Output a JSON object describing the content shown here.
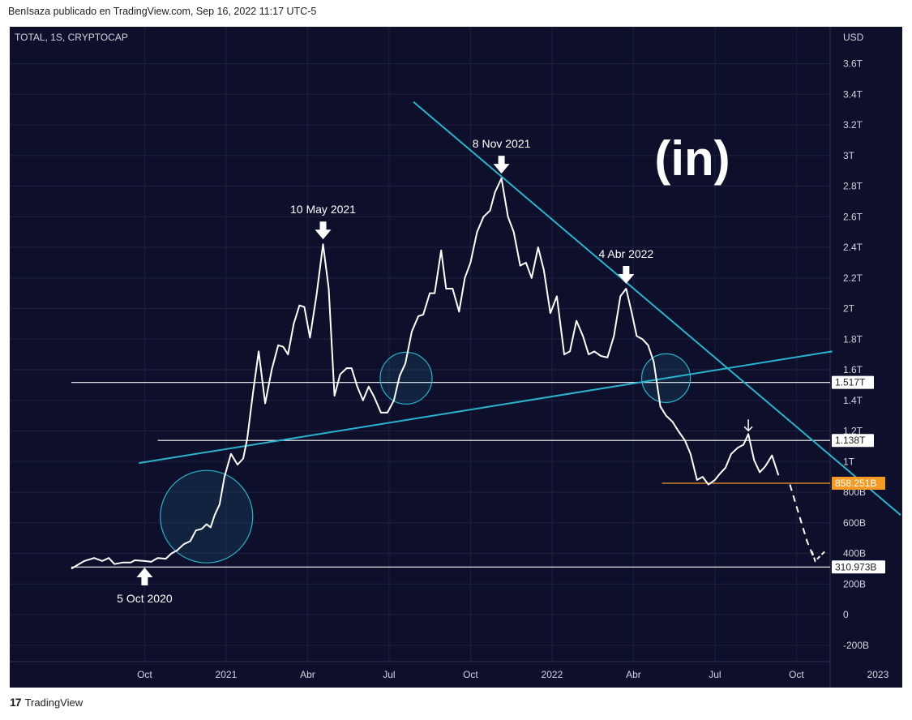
{
  "header": {
    "text": "BenIsaza publicado en TradingView.com, Sep 16, 2022 11:17 UTC-5"
  },
  "footer": {
    "brand": "TradingView",
    "logo_glyph": "17"
  },
  "watermark": {
    "text": "(in)"
  },
  "colors": {
    "background": "#0e0f2b",
    "price_line": "#ffffff",
    "trendline": "#2ab3cc",
    "support_orange": "#f59a23",
    "grid": "#1d2040"
  },
  "chart_data": {
    "type": "line",
    "symbol": "TOTAL, 1S, CRYPTOCAP",
    "currency": "USD",
    "title": "",
    "ylim": [
      -280,
      3780
    ],
    "y_ticks": [
      {
        "v": -200,
        "label": "-200B"
      },
      {
        "v": 0,
        "label": "0"
      },
      {
        "v": 200,
        "label": "200B"
      },
      {
        "v": 400,
        "label": "400B"
      },
      {
        "v": 600,
        "label": "600B"
      },
      {
        "v": 800,
        "label": "800B"
      },
      {
        "v": 1000,
        "label": "1T"
      },
      {
        "v": 1200,
        "label": "1.2T"
      },
      {
        "v": 1400,
        "label": "1.4T"
      },
      {
        "v": 1600,
        "label": "1.6T"
      },
      {
        "v": 1800,
        "label": "1.8T"
      },
      {
        "v": 2000,
        "label": "2T"
      },
      {
        "v": 2200,
        "label": "2.2T"
      },
      {
        "v": 2400,
        "label": "2.4T"
      },
      {
        "v": 2600,
        "label": "2.6T"
      },
      {
        "v": 2800,
        "label": "2.8T"
      },
      {
        "v": 3000,
        "label": "3T"
      },
      {
        "v": 3200,
        "label": "3.2T"
      },
      {
        "v": 3400,
        "label": "3.4T"
      },
      {
        "v": 3600,
        "label": "3.6T"
      }
    ],
    "x_ticks": [
      {
        "t": 0.82,
        "label": "Oct"
      },
      {
        "t": 1.82,
        "label": "2021"
      },
      {
        "t": 2.82,
        "label": "Abr"
      },
      {
        "t": 3.82,
        "label": "Jul"
      },
      {
        "t": 4.82,
        "label": "Oct"
      },
      {
        "t": 5.82,
        "label": "2022"
      },
      {
        "t": 6.82,
        "label": "Abr"
      },
      {
        "t": 7.82,
        "label": "Jul"
      },
      {
        "t": 8.82,
        "label": "Oct"
      },
      {
        "t": 9.82,
        "label": "2023"
      }
    ],
    "x_unit": "quarters since 2020-07-06",
    "price_series": [
      {
        "t": -0.08,
        "v": 300
      },
      {
        "t": 0.08,
        "v": 350
      },
      {
        "t": 0.2,
        "v": 370
      },
      {
        "t": 0.3,
        "v": 350
      },
      {
        "t": 0.38,
        "v": 370
      },
      {
        "t": 0.45,
        "v": 330
      },
      {
        "t": 0.55,
        "v": 340
      },
      {
        "t": 0.65,
        "v": 340
      },
      {
        "t": 0.7,
        "v": 355
      },
      {
        "t": 0.82,
        "v": 350
      },
      {
        "t": 0.9,
        "v": 345
      },
      {
        "t": 0.98,
        "v": 370
      },
      {
        "t": 1.08,
        "v": 365
      },
      {
        "t": 1.15,
        "v": 400
      },
      {
        "t": 1.22,
        "v": 420
      },
      {
        "t": 1.3,
        "v": 460
      },
      {
        "t": 1.38,
        "v": 480
      },
      {
        "t": 1.45,
        "v": 550
      },
      {
        "t": 1.52,
        "v": 560
      },
      {
        "t": 1.58,
        "v": 590
      },
      {
        "t": 1.63,
        "v": 570
      },
      {
        "t": 1.68,
        "v": 650
      },
      {
        "t": 1.74,
        "v": 720
      },
      {
        "t": 1.8,
        "v": 900
      },
      {
        "t": 1.88,
        "v": 1050
      },
      {
        "t": 1.96,
        "v": 980
      },
      {
        "t": 2.03,
        "v": 1020
      },
      {
        "t": 2.08,
        "v": 1150
      },
      {
        "t": 2.15,
        "v": 1450
      },
      {
        "t": 2.22,
        "v": 1720
      },
      {
        "t": 2.3,
        "v": 1380
      },
      {
        "t": 2.38,
        "v": 1600
      },
      {
        "t": 2.46,
        "v": 1760
      },
      {
        "t": 2.52,
        "v": 1750
      },
      {
        "t": 2.58,
        "v": 1700
      },
      {
        "t": 2.65,
        "v": 1900
      },
      {
        "t": 2.72,
        "v": 2020
      },
      {
        "t": 2.78,
        "v": 2010
      },
      {
        "t": 2.85,
        "v": 1810
      },
      {
        "t": 2.93,
        "v": 2090
      },
      {
        "t": 3.01,
        "v": 2420
      },
      {
        "t": 3.08,
        "v": 2130
      },
      {
        "t": 3.15,
        "v": 1430
      },
      {
        "t": 3.22,
        "v": 1570
      },
      {
        "t": 3.3,
        "v": 1610
      },
      {
        "t": 3.36,
        "v": 1610
      },
      {
        "t": 3.43,
        "v": 1490
      },
      {
        "t": 3.5,
        "v": 1400
      },
      {
        "t": 3.57,
        "v": 1490
      },
      {
        "t": 3.64,
        "v": 1420
      },
      {
        "t": 3.72,
        "v": 1320
      },
      {
        "t": 3.8,
        "v": 1320
      },
      {
        "t": 3.88,
        "v": 1400
      },
      {
        "t": 3.95,
        "v": 1560
      },
      {
        "t": 4.02,
        "v": 1640
      },
      {
        "t": 4.1,
        "v": 1850
      },
      {
        "t": 4.18,
        "v": 1950
      },
      {
        "t": 4.24,
        "v": 1960
      },
      {
        "t": 4.32,
        "v": 2100
      },
      {
        "t": 4.38,
        "v": 2100
      },
      {
        "t": 4.46,
        "v": 2380
      },
      {
        "t": 4.52,
        "v": 2130
      },
      {
        "t": 4.6,
        "v": 2130
      },
      {
        "t": 4.68,
        "v": 1980
      },
      {
        "t": 4.75,
        "v": 2200
      },
      {
        "t": 4.82,
        "v": 2300
      },
      {
        "t": 4.9,
        "v": 2500
      },
      {
        "t": 4.98,
        "v": 2600
      },
      {
        "t": 5.06,
        "v": 2640
      },
      {
        "t": 5.12,
        "v": 2760
      },
      {
        "t": 5.2,
        "v": 2850
      },
      {
        "t": 5.28,
        "v": 2600
      },
      {
        "t": 5.35,
        "v": 2500
      },
      {
        "t": 5.43,
        "v": 2280
      },
      {
        "t": 5.5,
        "v": 2300
      },
      {
        "t": 5.57,
        "v": 2200
      },
      {
        "t": 5.65,
        "v": 2400
      },
      {
        "t": 5.72,
        "v": 2250
      },
      {
        "t": 5.8,
        "v": 1970
      },
      {
        "t": 5.88,
        "v": 2080
      },
      {
        "t": 5.97,
        "v": 1700
      },
      {
        "t": 6.04,
        "v": 1720
      },
      {
        "t": 6.12,
        "v": 1920
      },
      {
        "t": 6.2,
        "v": 1820
      },
      {
        "t": 6.27,
        "v": 1700
      },
      {
        "t": 6.34,
        "v": 1720
      },
      {
        "t": 6.42,
        "v": 1690
      },
      {
        "t": 6.5,
        "v": 1680
      },
      {
        "t": 6.58,
        "v": 1820
      },
      {
        "t": 6.66,
        "v": 2080
      },
      {
        "t": 6.73,
        "v": 2130
      },
      {
        "t": 6.8,
        "v": 1970
      },
      {
        "t": 6.86,
        "v": 1820
      },
      {
        "t": 6.93,
        "v": 1800
      },
      {
        "t": 7.0,
        "v": 1760
      },
      {
        "t": 7.07,
        "v": 1650
      },
      {
        "t": 7.15,
        "v": 1360
      },
      {
        "t": 7.22,
        "v": 1300
      },
      {
        "t": 7.3,
        "v": 1260
      },
      {
        "t": 7.37,
        "v": 1200
      },
      {
        "t": 7.45,
        "v": 1140
      },
      {
        "t": 7.52,
        "v": 1050
      },
      {
        "t": 7.6,
        "v": 880
      },
      {
        "t": 7.67,
        "v": 900
      },
      {
        "t": 7.74,
        "v": 850
      },
      {
        "t": 7.82,
        "v": 880
      },
      {
        "t": 7.88,
        "v": 920
      },
      {
        "t": 7.95,
        "v": 960
      },
      {
        "t": 8.02,
        "v": 1050
      },
      {
        "t": 8.1,
        "v": 1090
      },
      {
        "t": 8.17,
        "v": 1110
      },
      {
        "t": 8.23,
        "v": 1180
      },
      {
        "t": 8.3,
        "v": 1010
      },
      {
        "t": 8.37,
        "v": 930
      },
      {
        "t": 8.44,
        "v": 970
      },
      {
        "t": 8.52,
        "v": 1040
      },
      {
        "t": 8.6,
        "v": 910
      }
    ],
    "projection": [
      {
        "t": 8.74,
        "v": 850
      },
      {
        "t": 8.95,
        "v": 480
      },
      {
        "t": 9.05,
        "v": 350
      },
      {
        "t": 9.17,
        "v": 350
      }
    ],
    "trendlines": [
      {
        "name": "descending resistance",
        "from": {
          "t": 4.12,
          "v": 3350
        },
        "to": {
          "t": 10.1,
          "v": 650
        }
      },
      {
        "name": "ascending support",
        "from": {
          "t": 0.75,
          "v": 990
        },
        "to": {
          "t": 9.26,
          "v": 1720
        }
      }
    ],
    "horizontal_lines": [
      {
        "v": 1517,
        "label": "1.517T",
        "color": "#ffffff",
        "t_start": -0.08
      },
      {
        "v": 1138,
        "label": "1.138T",
        "color": "#ffffff",
        "t_start": 0.98
      },
      {
        "v": 858.251,
        "label": "858.251B",
        "color": "#f59a23",
        "t_start": 7.17
      },
      {
        "v": 310.973,
        "label": "310.973B",
        "color": "#ffffff",
        "t_start": -0.08
      }
    ],
    "circles": [
      {
        "t": 1.58,
        "v": 640,
        "r": 57
      },
      {
        "t": 4.03,
        "v": 1545,
        "r": 32
      },
      {
        "t": 7.22,
        "v": 1545,
        "r": 30
      }
    ],
    "annotations": [
      {
        "text": "5 Oct 2020",
        "t": 0.82,
        "v": 350,
        "direction": "up"
      },
      {
        "text": "10 May 2021",
        "t": 3.01,
        "v": 2420,
        "direction": "down"
      },
      {
        "text": "8 Nov 2021",
        "t": 5.2,
        "v": 2850,
        "direction": "down"
      },
      {
        "text": "4 Abr 2022",
        "t": 6.73,
        "v": 2130,
        "direction": "down"
      },
      {
        "text": "",
        "t": 8.23,
        "v": 1180,
        "direction": "down-small"
      }
    ]
  }
}
